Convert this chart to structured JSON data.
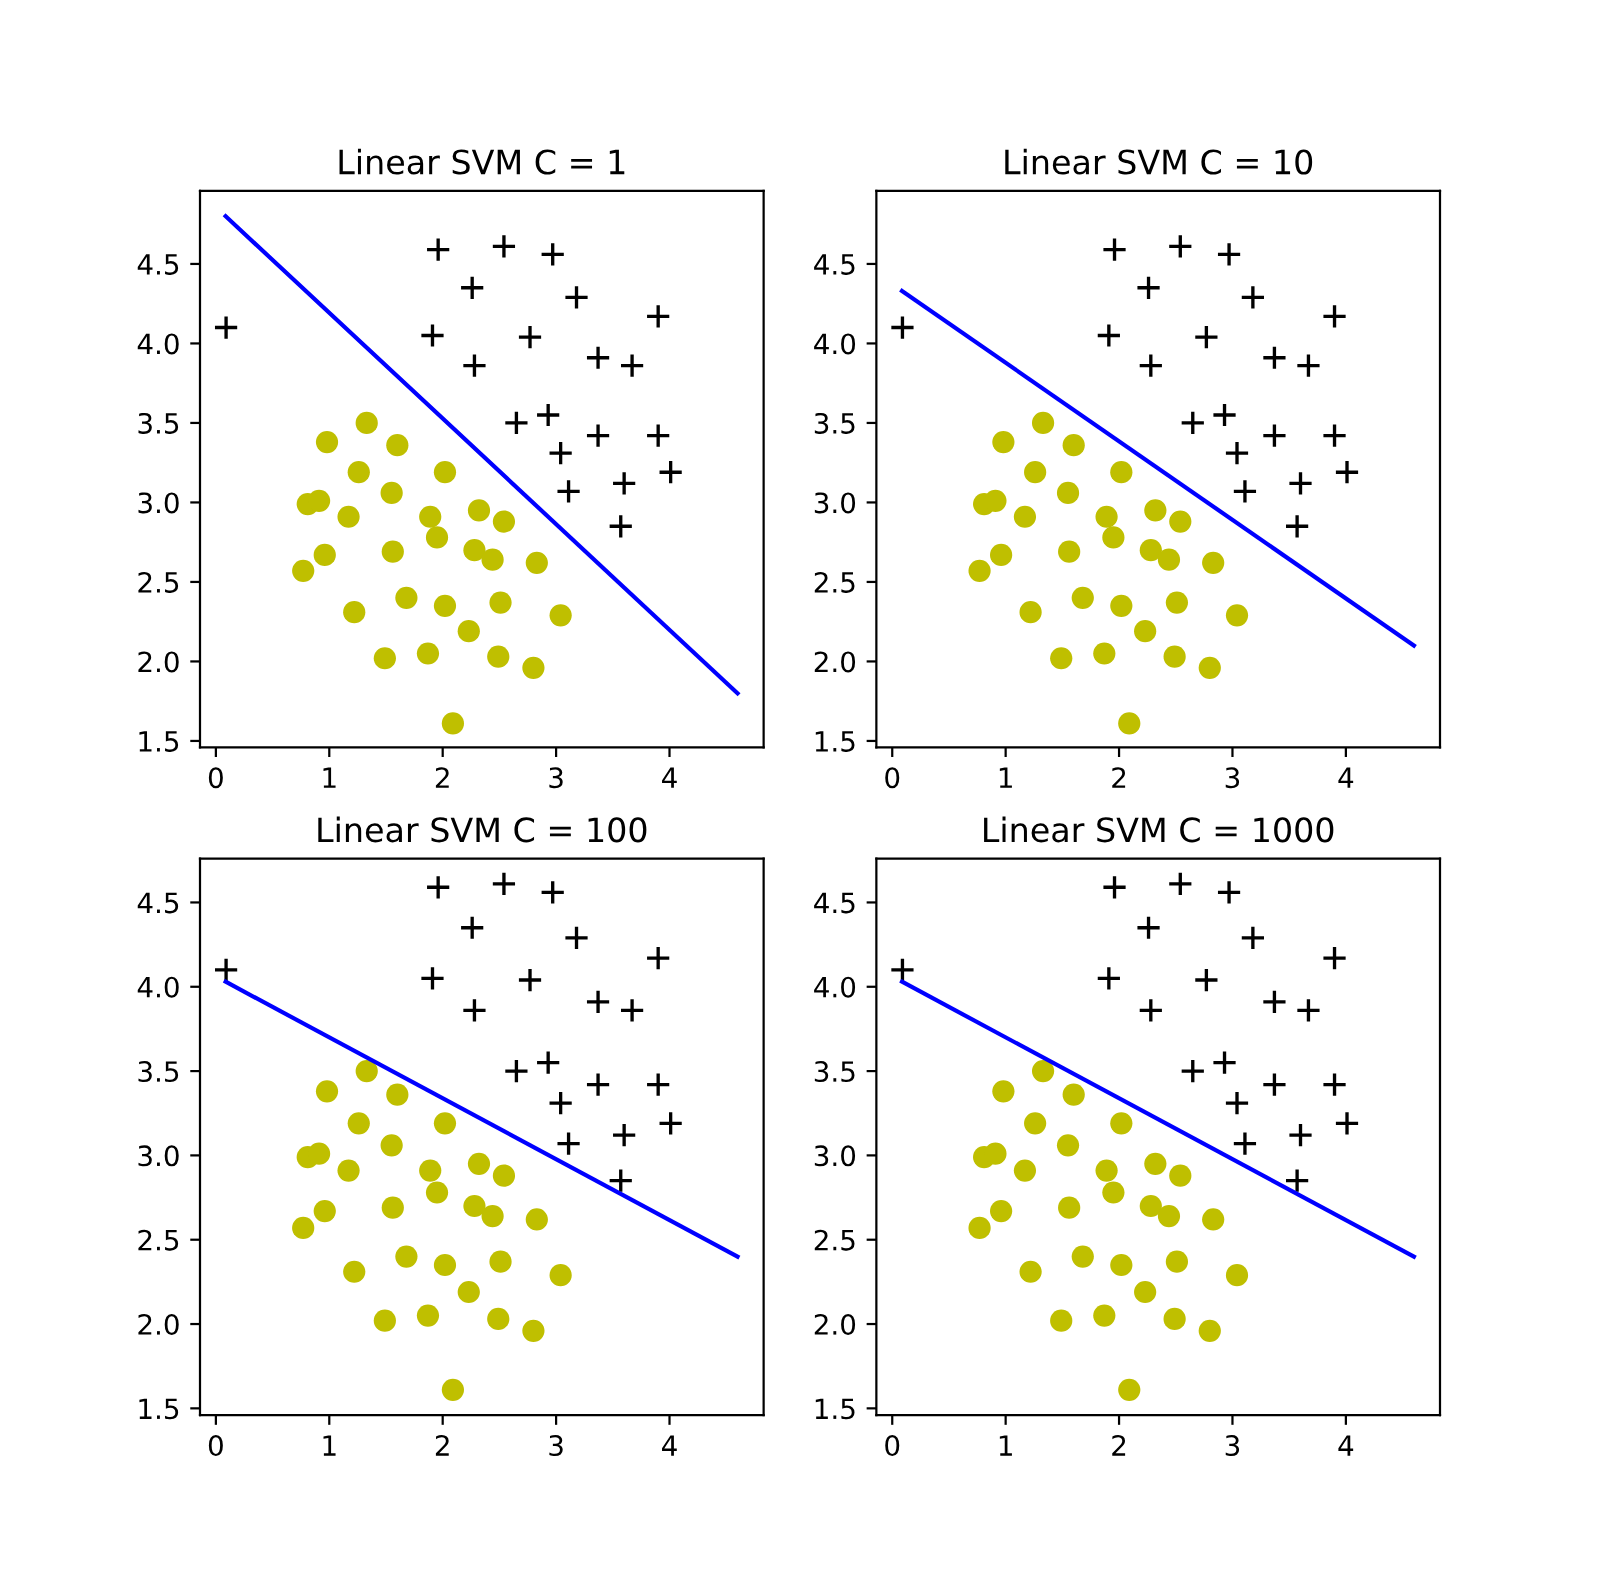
{
  "chart_data": [
    {
      "type": "scatter",
      "title": "Linear SVM C = 1",
      "xlim": [
        -0.14,
        4.83
      ],
      "ylim": [
        1.46,
        4.96
      ],
      "xticks": [
        0,
        1,
        2,
        3,
        4
      ],
      "yticks": [
        1.5,
        {
          "value": 2,
          "label": "2.0"
        },
        2.5,
        {
          "value": 3,
          "label": "3.0"
        },
        3.5,
        {
          "value": 4,
          "label": "4.0"
        },
        4.5
      ],
      "grid": false,
      "legend": false,
      "series": [
        {
          "type": "scatter",
          "marker": "cross",
          "color": "#000000",
          "x": [
            0.09,
            1.96,
            2.54,
            2.97,
            2.26,
            3.18,
            3.9,
            1.91,
            2.77,
            2.28,
            3.37,
            3.67,
            2.65,
            2.93,
            3.37,
            3.9,
            3.04,
            4.01,
            3.6,
            3.11,
            3.57
          ],
          "values": [
            4.1,
            4.59,
            4.61,
            4.56,
            4.35,
            4.29,
            4.17,
            4.05,
            4.04,
            3.86,
            3.91,
            3.86,
            3.5,
            3.55,
            3.42,
            3.42,
            3.31,
            3.19,
            3.12,
            3.07,
            2.85
          ]
        },
        {
          "type": "scatter",
          "marker": "circle",
          "color": "#bfbf00",
          "x": [
            1.33,
            0.98,
            1.6,
            1.26,
            2.02,
            1.55,
            0.81,
            0.91,
            1.17,
            1.89,
            2.32,
            2.54,
            1.95,
            0.96,
            1.56,
            2.28,
            2.44,
            2.83,
            0.77,
            1.68,
            1.22,
            2.02,
            2.51,
            3.04,
            2.23,
            1.49,
            1.87,
            2.49,
            2.8,
            2.09
          ],
          "values": [
            3.5,
            3.38,
            3.36,
            3.19,
            3.19,
            3.06,
            2.99,
            3.01,
            2.91,
            2.91,
            2.95,
            2.88,
            2.78,
            2.67,
            2.69,
            2.7,
            2.64,
            2.62,
            2.57,
            2.4,
            2.31,
            2.35,
            2.37,
            2.29,
            2.19,
            2.02,
            2.05,
            2.03,
            1.96,
            1.61
          ]
        },
        {
          "type": "line",
          "color": "#0000ff",
          "x": [
            0.086,
            4.6
          ],
          "values": [
            4.8,
            1.8
          ]
        }
      ]
    },
    {
      "type": "scatter",
      "title": "Linear SVM C = 10",
      "xlim": [
        -0.14,
        4.83
      ],
      "ylim": [
        1.46,
        4.96
      ],
      "xticks": [
        0,
        1,
        2,
        3,
        4
      ],
      "yticks": [
        1.5,
        {
          "value": 2,
          "label": "2.0"
        },
        2.5,
        {
          "value": 3,
          "label": "3.0"
        },
        3.5,
        {
          "value": 4,
          "label": "4.0"
        },
        4.5
      ],
      "grid": false,
      "legend": false,
      "series": [
        {
          "type": "scatter",
          "marker": "cross",
          "color": "#000000",
          "x": [
            0.09,
            1.96,
            2.54,
            2.97,
            2.26,
            3.18,
            3.9,
            1.91,
            2.77,
            2.28,
            3.37,
            3.67,
            2.65,
            2.93,
            3.37,
            3.9,
            3.04,
            4.01,
            3.6,
            3.11,
            3.57
          ],
          "values": [
            4.1,
            4.59,
            4.61,
            4.56,
            4.35,
            4.29,
            4.17,
            4.05,
            4.04,
            3.86,
            3.91,
            3.86,
            3.5,
            3.55,
            3.42,
            3.42,
            3.31,
            3.19,
            3.12,
            3.07,
            2.85
          ]
        },
        {
          "type": "scatter",
          "marker": "circle",
          "color": "#bfbf00",
          "x": [
            1.33,
            0.98,
            1.6,
            1.26,
            2.02,
            1.55,
            0.81,
            0.91,
            1.17,
            1.89,
            2.32,
            2.54,
            1.95,
            0.96,
            1.56,
            2.28,
            2.44,
            2.83,
            0.77,
            1.68,
            1.22,
            2.02,
            2.51,
            3.04,
            2.23,
            1.49,
            1.87,
            2.49,
            2.8,
            2.09
          ],
          "values": [
            3.5,
            3.38,
            3.36,
            3.19,
            3.19,
            3.06,
            2.99,
            3.01,
            2.91,
            2.91,
            2.95,
            2.88,
            2.78,
            2.67,
            2.69,
            2.7,
            2.64,
            2.62,
            2.57,
            2.4,
            2.31,
            2.35,
            2.37,
            2.29,
            2.19,
            2.02,
            2.05,
            2.03,
            1.96,
            1.61
          ]
        },
        {
          "type": "line",
          "color": "#0000ff",
          "x": [
            0.086,
            4.6
          ],
          "values": [
            4.33,
            2.1
          ]
        }
      ]
    },
    {
      "type": "scatter",
      "title": "Linear SVM C = 100",
      "xlim": [
        -0.14,
        4.83
      ],
      "ylim": [
        1.46,
        4.76
      ],
      "xticks": [
        0,
        1,
        2,
        3,
        4
      ],
      "yticks": [
        1.5,
        {
          "value": 2,
          "label": "2.0"
        },
        2.5,
        {
          "value": 3,
          "label": "3.0"
        },
        3.5,
        {
          "value": 4,
          "label": "4.0"
        },
        4.5
      ],
      "grid": false,
      "legend": false,
      "series": [
        {
          "type": "scatter",
          "marker": "cross",
          "color": "#000000",
          "x": [
            0.09,
            1.96,
            2.54,
            2.97,
            2.26,
            3.18,
            3.9,
            1.91,
            2.77,
            2.28,
            3.37,
            3.67,
            2.65,
            2.93,
            3.37,
            3.9,
            3.04,
            4.01,
            3.6,
            3.11,
            3.57
          ],
          "values": [
            4.1,
            4.59,
            4.61,
            4.56,
            4.35,
            4.29,
            4.17,
            4.05,
            4.04,
            3.86,
            3.91,
            3.86,
            3.5,
            3.55,
            3.42,
            3.42,
            3.31,
            3.19,
            3.12,
            3.07,
            2.85
          ]
        },
        {
          "type": "scatter",
          "marker": "circle",
          "color": "#bfbf00",
          "x": [
            1.33,
            0.98,
            1.6,
            1.26,
            2.02,
            1.55,
            0.81,
            0.91,
            1.17,
            1.89,
            2.32,
            2.54,
            1.95,
            0.96,
            1.56,
            2.28,
            2.44,
            2.83,
            0.77,
            1.68,
            1.22,
            2.02,
            2.51,
            3.04,
            2.23,
            1.49,
            1.87,
            2.49,
            2.8,
            2.09
          ],
          "values": [
            3.5,
            3.38,
            3.36,
            3.19,
            3.19,
            3.06,
            2.99,
            3.01,
            2.91,
            2.91,
            2.95,
            2.88,
            2.78,
            2.67,
            2.69,
            2.7,
            2.64,
            2.62,
            2.57,
            2.4,
            2.31,
            2.35,
            2.37,
            2.29,
            2.19,
            2.02,
            2.05,
            2.03,
            1.96,
            1.61
          ]
        },
        {
          "type": "line",
          "color": "#0000ff",
          "x": [
            0.086,
            4.6
          ],
          "values": [
            4.03,
            2.4
          ]
        }
      ]
    },
    {
      "type": "scatter",
      "title": "Linear SVM C = 1000",
      "xlim": [
        -0.14,
        4.83
      ],
      "ylim": [
        1.46,
        4.76
      ],
      "xticks": [
        0,
        1,
        2,
        3,
        4
      ],
      "yticks": [
        1.5,
        {
          "value": 2,
          "label": "2.0"
        },
        2.5,
        {
          "value": 3,
          "label": "3.0"
        },
        3.5,
        {
          "value": 4,
          "label": "4.0"
        },
        4.5
      ],
      "grid": false,
      "legend": false,
      "series": [
        {
          "type": "scatter",
          "marker": "cross",
          "color": "#000000",
          "x": [
            0.09,
            1.96,
            2.54,
            2.97,
            2.26,
            3.18,
            3.9,
            1.91,
            2.77,
            2.28,
            3.37,
            3.67,
            2.65,
            2.93,
            3.37,
            3.9,
            3.04,
            4.01,
            3.6,
            3.11,
            3.57
          ],
          "values": [
            4.1,
            4.59,
            4.61,
            4.56,
            4.35,
            4.29,
            4.17,
            4.05,
            4.04,
            3.86,
            3.91,
            3.86,
            3.5,
            3.55,
            3.42,
            3.42,
            3.31,
            3.19,
            3.12,
            3.07,
            2.85
          ]
        },
        {
          "type": "scatter",
          "marker": "circle",
          "color": "#bfbf00",
          "x": [
            1.33,
            0.98,
            1.6,
            1.26,
            2.02,
            1.55,
            0.81,
            0.91,
            1.17,
            1.89,
            2.32,
            2.54,
            1.95,
            0.96,
            1.56,
            2.28,
            2.44,
            2.83,
            0.77,
            1.68,
            1.22,
            2.02,
            2.51,
            3.04,
            2.23,
            1.49,
            1.87,
            2.49,
            2.8,
            2.09
          ],
          "values": [
            3.5,
            3.38,
            3.36,
            3.19,
            3.19,
            3.06,
            2.99,
            3.01,
            2.91,
            2.91,
            2.95,
            2.88,
            2.78,
            2.67,
            2.69,
            2.7,
            2.64,
            2.62,
            2.57,
            2.4,
            2.31,
            2.35,
            2.37,
            2.29,
            2.19,
            2.02,
            2.05,
            2.03,
            1.96,
            1.61
          ]
        },
        {
          "type": "line",
          "color": "#0000ff",
          "x": [
            0.086,
            4.6
          ],
          "values": [
            4.03,
            2.4
          ]
        }
      ]
    }
  ]
}
